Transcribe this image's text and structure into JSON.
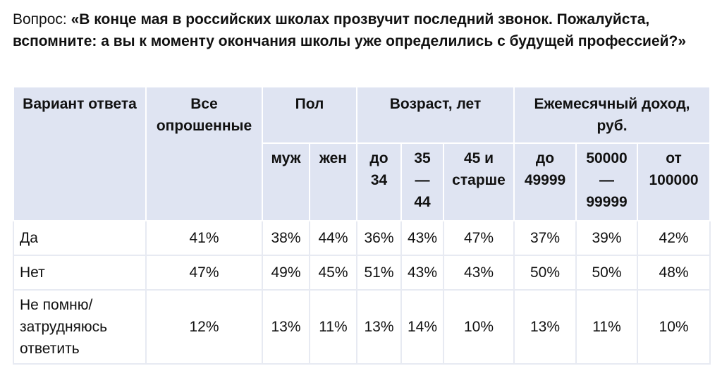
{
  "question": {
    "lead": "Вопрос: ",
    "text": "«В конце мая в российских школах прозвучит последний звонок. Пожалуйста, вспомните: а вы к моменту окончания школы уже определились с будущей профессией?»"
  },
  "table": {
    "headers": {
      "answer": "Вариант ответа",
      "all": "Все опрошенные",
      "gender": "Пол",
      "age": "Возраст, лет",
      "income": "Ежемесячный доход, руб."
    },
    "subheaders": {
      "male": "муж",
      "female": "жен",
      "age1": "до 34",
      "age2": "35 — 44",
      "age3": "45 и старше",
      "inc1": "до 49999",
      "inc2": "50000 — 99999",
      "inc3": "от 100000"
    },
    "rows": [
      {
        "label": "Да",
        "values": [
          "41%",
          "38%",
          "44%",
          "36%",
          "43%",
          "47%",
          "37%",
          "39%",
          "42%"
        ]
      },
      {
        "label": "Нет",
        "values": [
          "47%",
          "49%",
          "45%",
          "51%",
          "43%",
          "43%",
          "50%",
          "50%",
          "48%"
        ]
      },
      {
        "label": "Не помню/ затрудняюсь ответить",
        "values": [
          "12%",
          "13%",
          "11%",
          "13%",
          "14%",
          "10%",
          "13%",
          "11%",
          "10%"
        ]
      }
    ]
  }
}
